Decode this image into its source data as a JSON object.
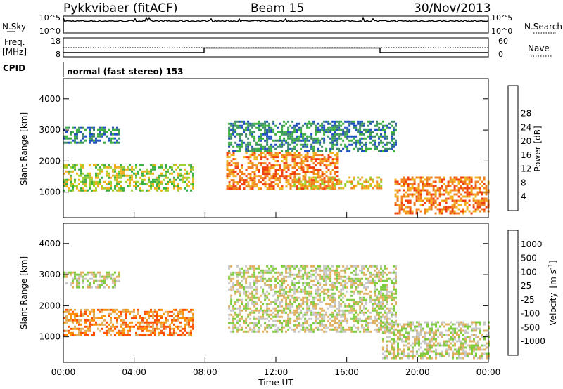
{
  "header": {
    "station": "Pykkvibaer (fitACF)",
    "beam": "Beam 15",
    "date": "30/Nov/2013"
  },
  "top_panels": {
    "nsky_label": "N.Sky",
    "nsky_ticks": [
      "10^5",
      "10^0"
    ],
    "nsearch_label": "N.Search",
    "nsearch_ticks": [
      "10^5",
      "10^0"
    ],
    "freq_label": "Freq.",
    "freq_unit": "[MHz]",
    "freq_ticks": [
      "18",
      "8"
    ],
    "nave_label": "Nave",
    "nave_ticks": [
      "60",
      "0"
    ],
    "cpid_label": "CPID",
    "cpid_text": "normal (fast stereo) 153"
  },
  "colors": {
    "power": [
      "#1a1aff",
      "#2050c0",
      "#3d8a6a",
      "#3cb040",
      "#a0d030",
      "#f0b020",
      "#f08020",
      "#f04010",
      "#ff0000"
    ],
    "velocity": [
      "#ff0000",
      "#ff5000",
      "#ff9000",
      "#e0b060",
      "#c8c8c8",
      "#80cc40",
      "#3a9a50",
      "#2a6ab0",
      "#1a28c8"
    ]
  },
  "chart_data": [
    {
      "type": "heatmap",
      "title": "",
      "xlabel": "Time UT",
      "ylabel": "Slant Range [km]",
      "x_ticks": [
        "00:00",
        "04:00",
        "08:00",
        "12:00",
        "16:00",
        "20:00",
        "00:00"
      ],
      "x_range_hours": [
        0,
        24
      ],
      "ylim": [
        180,
        4650
      ],
      "y_ticks": [
        "1000",
        "2000",
        "3000",
        "4000"
      ],
      "colorbar": {
        "label": "Power [dB]",
        "range": [
          0,
          32
        ],
        "ticks": [
          "4",
          "8",
          "12",
          "16",
          "20",
          "24",
          "28"
        ]
      },
      "echo_regions": [
        {
          "t0": 0.0,
          "t1": 7.3,
          "r0": 1050,
          "r1": 1900,
          "level": 15
        },
        {
          "t0": 0.0,
          "t1": 3.2,
          "r0": 2600,
          "r1": 3100,
          "level": 8
        },
        {
          "t0": 9.2,
          "t1": 15.5,
          "r0": 1100,
          "r1": 2300,
          "level": 22
        },
        {
          "t0": 9.3,
          "t1": 18.8,
          "r0": 2300,
          "r1": 3300,
          "level": 8
        },
        {
          "t0": 13.0,
          "t1": 18.0,
          "r0": 1150,
          "r1": 1500,
          "level": 20
        },
        {
          "t0": 18.7,
          "t1": 24.0,
          "r0": 300,
          "r1": 1500,
          "level": 24
        }
      ]
    },
    {
      "type": "heatmap",
      "title": "",
      "xlabel": "Time UT",
      "ylabel": "Slant Range [km]",
      "x_ticks": [
        "00:00",
        "04:00",
        "08:00",
        "12:00",
        "16:00",
        "20:00",
        "00:00"
      ],
      "x_range_hours": [
        0,
        24
      ],
      "ylim": [
        180,
        4650
      ],
      "y_ticks": [
        "1000",
        "2000",
        "3000",
        "4000"
      ],
      "colorbar": {
        "label": "Velocity",
        "unit": "[m s",
        "unit_exp": "-1",
        "unit_close": "]",
        "ticks": [
          "-1000",
          "-500",
          "-100",
          "-25",
          "25",
          "100",
          "500",
          "1000"
        ]
      },
      "echo_regions": [
        {
          "t0": 0.0,
          "t1": 7.3,
          "r0": 1050,
          "r1": 1900,
          "level": 2
        },
        {
          "t0": 0.0,
          "t1": 3.2,
          "r0": 2600,
          "r1": 3100,
          "level": 4
        },
        {
          "t0": 9.3,
          "t1": 18.8,
          "r0": 1200,
          "r1": 3300,
          "level": 4
        },
        {
          "t0": 18.0,
          "t1": 24.0,
          "r0": 300,
          "r1": 1500,
          "level": 4
        }
      ]
    }
  ]
}
